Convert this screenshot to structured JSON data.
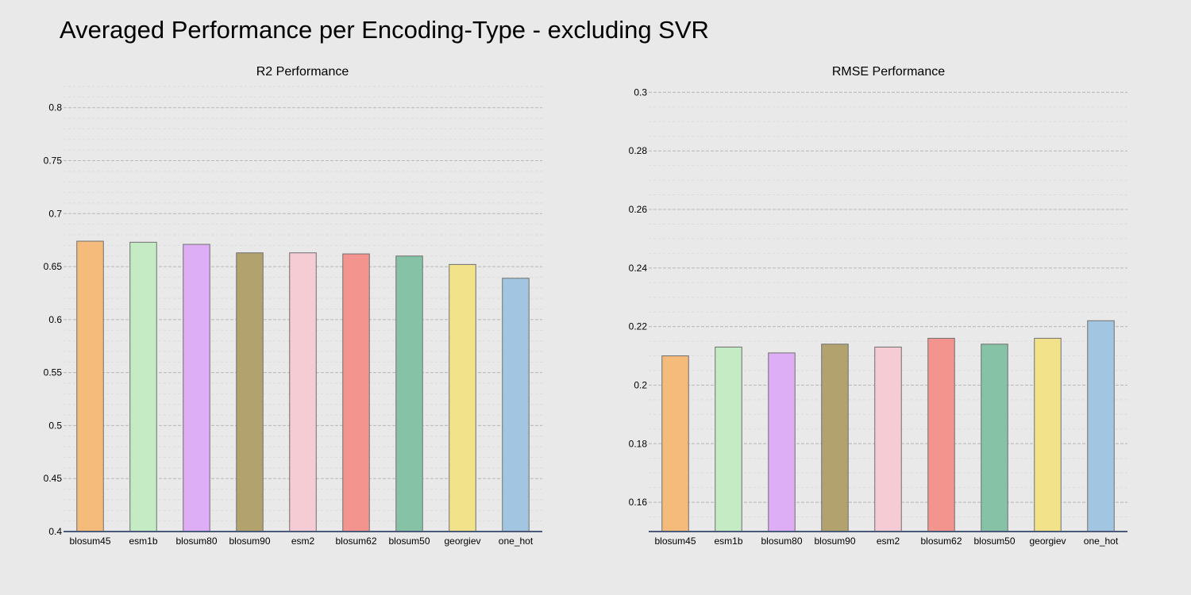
{
  "title": "Averaged Performance per Encoding-Type - excluding SVR",
  "chart_data": [
    {
      "type": "bar",
      "title": "R2 Performance",
      "categories": [
        "blosum45",
        "esm1b",
        "blosum80",
        "blosum90",
        "esm2",
        "blosum62",
        "blosum50",
        "georgiev",
        "one_hot"
      ],
      "values": [
        0.674,
        0.673,
        0.671,
        0.663,
        0.663,
        0.662,
        0.66,
        0.652,
        0.639
      ],
      "ylim": [
        0.4,
        0.82
      ],
      "yticks": [
        0.4,
        0.45,
        0.5,
        0.55,
        0.6,
        0.65,
        0.7,
        0.75,
        0.8
      ],
      "ytick_labels": [
        "0.4",
        "0.45",
        "0.5",
        "0.55",
        "0.6",
        "0.65",
        "0.7",
        "0.75",
        "0.8"
      ],
      "minor_step": 0.01,
      "grid": true,
      "colors": [
        "#f4bb7a",
        "#c4ebc4",
        "#ddaef5",
        "#b2a26e",
        "#f5ccd3",
        "#f4948f",
        "#86c2a5",
        "#f2e38b",
        "#a2c6e1"
      ]
    },
    {
      "type": "bar",
      "title": "RMSE Performance",
      "categories": [
        "blosum45",
        "esm1b",
        "blosum80",
        "blosum90",
        "esm2",
        "blosum62",
        "blosum50",
        "georgiev",
        "one_hot"
      ],
      "values": [
        0.21,
        0.213,
        0.211,
        0.214,
        0.213,
        0.216,
        0.214,
        0.216,
        0.222
      ],
      "ylim": [
        0.15,
        0.302
      ],
      "yticks": [
        0.16,
        0.18,
        0.2,
        0.22,
        0.24,
        0.26,
        0.28,
        0.3
      ],
      "ytick_labels": [
        "0.16",
        "0.18",
        "0.2",
        "0.22",
        "0.24",
        "0.26",
        "0.28",
        "0.3"
      ],
      "minor_step": 0.005,
      "grid": true,
      "colors": [
        "#f4bb7a",
        "#c4ebc4",
        "#ddaef5",
        "#b2a26e",
        "#f5ccd3",
        "#f4948f",
        "#86c2a5",
        "#f2e38b",
        "#a2c6e1"
      ]
    }
  ]
}
